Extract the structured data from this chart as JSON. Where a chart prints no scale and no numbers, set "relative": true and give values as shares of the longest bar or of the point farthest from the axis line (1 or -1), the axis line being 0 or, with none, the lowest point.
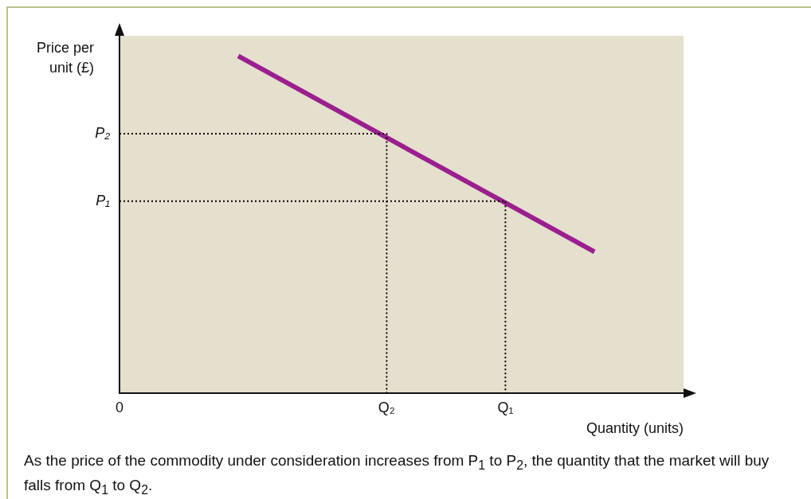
{
  "chart_data": {
    "type": "line",
    "relative": true,
    "xlabel": "Quantity (units)",
    "ylabel": "Price per unit (£)",
    "categories": [
      "0",
      null,
      null,
      null,
      null,
      null,
      null,
      null,
      null,
      "Q₂",
      null,
      null,
      null,
      "Q₁",
      null,
      null,
      null,
      null,
      null,
      null
    ],
    "legend": false,
    "marker": "none",
    "series": [
      {
        "color": "#9b1f8f",
        "line_style": "solid",
        "values": [
          null,
          null,
          null,
          null,
          1,
          null,
          null,
          null,
          null,
          null,
          null,
          null,
          null,
          null,
          null,
          null,
          0.42,
          null,
          null,
          null
        ]
      },
      {
        "name": "P₂",
        "color": "#000000",
        "line_style": "dotted",
        "x": [
          "0",
          "Q₂",
          "Q₂"
        ],
        "values": [
          0.77,
          0.77,
          0
        ]
      },
      {
        "name": "P₁",
        "color": "#000000",
        "line_style": "dotted",
        "x": [
          "0",
          "Q₁",
          "Q₁"
        ],
        "values": [
          0.57,
          0.57,
          0
        ]
      }
    ],
    "annotations": [
      "As the price of the commodity under consideration increases from P$_{1}$ to P$_{2}$, the quantity that the market will buy falls from Q$_{1}$ to Q$_{2}$."
    ]
  }
}
